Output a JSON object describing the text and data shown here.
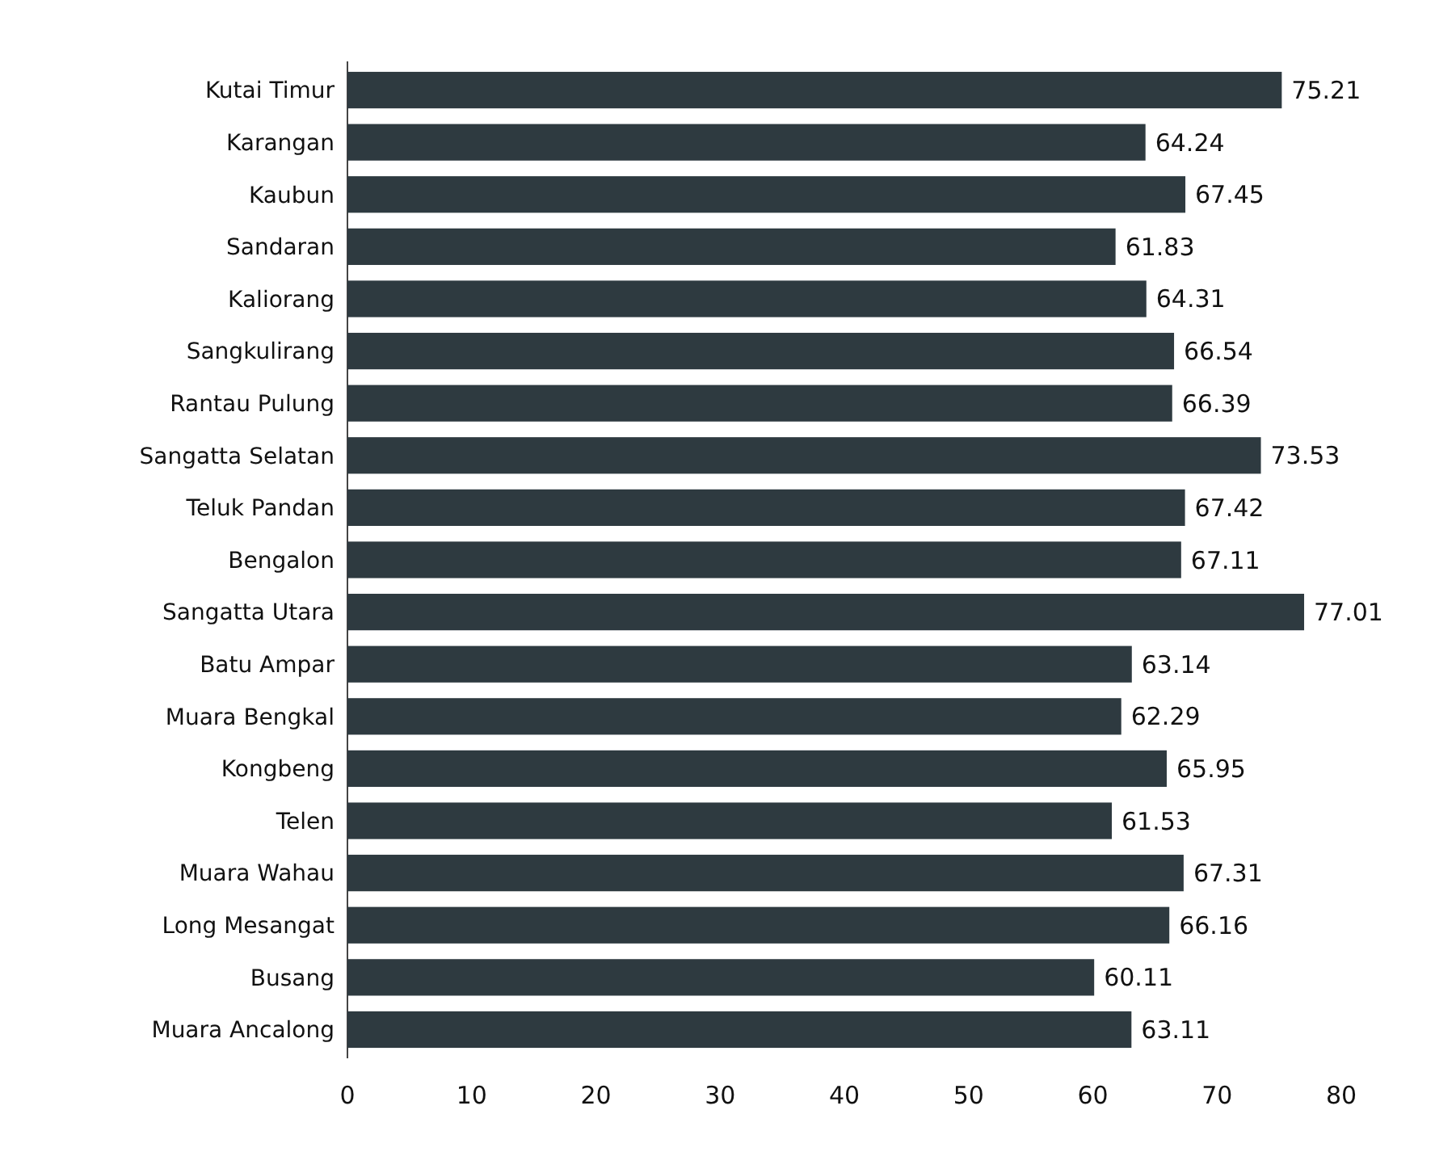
{
  "chart_data": {
    "type": "bar",
    "orientation": "horizontal",
    "categories": [
      "Kutai Timur",
      "Karangan",
      "Kaubun",
      "Sandaran",
      "Kaliorang",
      "Sangkulirang",
      "Rantau Pulung",
      "Sangatta Selatan",
      "Teluk Pandan",
      "Bengalon",
      "Sangatta Utara",
      "Batu Ampar",
      "Muara Bengkal",
      "Kongbeng",
      "Telen",
      "Muara Wahau",
      "Long Mesangat",
      "Busang",
      "Muara Ancalong"
    ],
    "values": [
      75.21,
      64.24,
      67.45,
      61.83,
      64.31,
      66.54,
      66.39,
      73.53,
      67.42,
      67.11,
      77.01,
      63.14,
      62.29,
      65.95,
      61.53,
      67.31,
      66.16,
      60.11,
      63.11
    ],
    "color": "#2e3a40",
    "xlim": [
      0,
      80
    ],
    "xticks": [
      0,
      10,
      20,
      30,
      40,
      50,
      60,
      70,
      80
    ],
    "data_labels": true
  }
}
